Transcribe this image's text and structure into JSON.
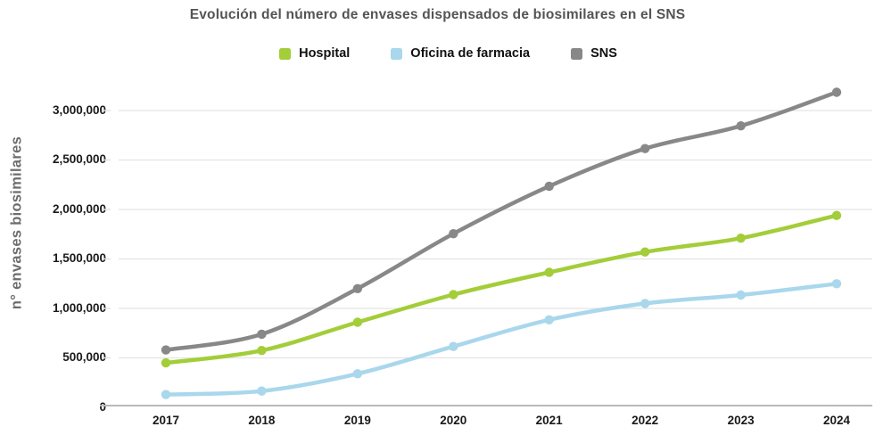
{
  "chart_data": {
    "type": "line",
    "title": "Evolución del número de envases dispensados de biosimilares en el SNS",
    "ylabel": "n° envases biosimilares",
    "xlabel": "",
    "categories": [
      "2017",
      "2018",
      "2019",
      "2020",
      "2021",
      "2022",
      "2023",
      "2024"
    ],
    "y_ticks": [
      0,
      500000,
      1000000,
      1500000,
      2000000,
      2500000,
      3000000
    ],
    "y_tick_labels": [
      "0",
      "500,000",
      "1,000,000",
      "1,500,000",
      "2,000,000",
      "2,500,000",
      "3,000,000"
    ],
    "ylim": [
      0,
      3250000
    ],
    "grid": true,
    "legend_position": "top",
    "grid_color": "#e4e4e4",
    "axis_color": "#b9b9b9",
    "series": [
      {
        "name": "Hospital",
        "color": "#a3cd39",
        "values": [
          450000,
          575000,
          860000,
          1140000,
          1365000,
          1570000,
          1710000,
          1940000
        ]
      },
      {
        "name": "Oficina de farmacia",
        "color": "#a9d7ec",
        "values": [
          130000,
          165000,
          340000,
          615000,
          885000,
          1050000,
          1135000,
          1250000
        ]
      },
      {
        "name": "SNS",
        "color": "#888888",
        "values": [
          580000,
          740000,
          1200000,
          1755000,
          2235000,
          2615000,
          2845000,
          3185000
        ]
      }
    ],
    "text_colors": {
      "title": "#545454",
      "tick": "#1a1a1a",
      "axis_title": "#6d6d6d",
      "legend": "#111111"
    }
  }
}
